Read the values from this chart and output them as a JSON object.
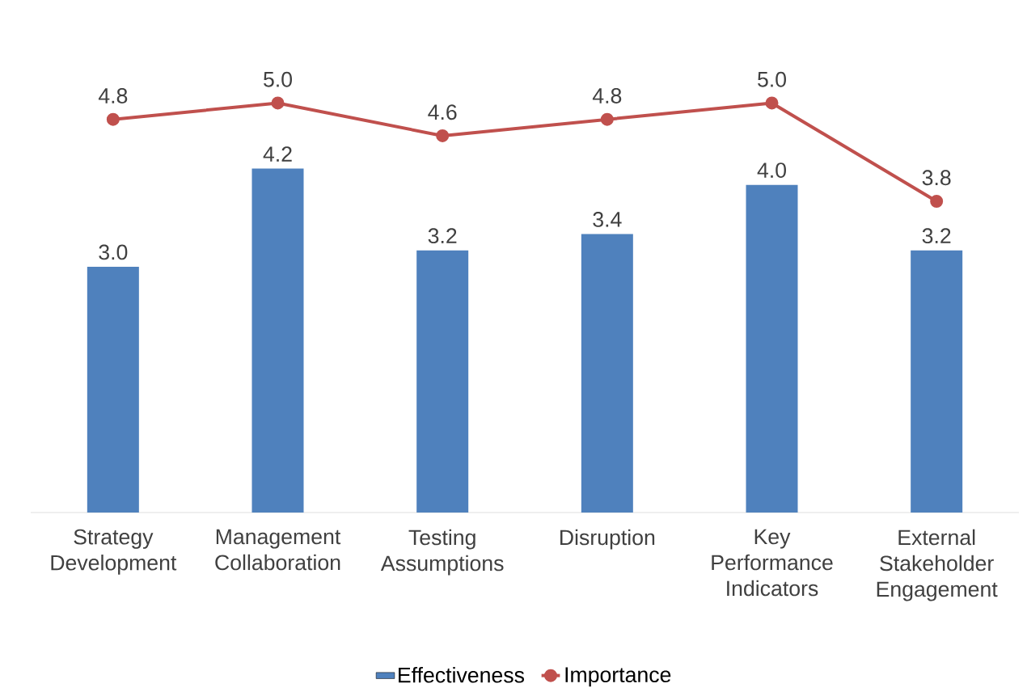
{
  "chart_data": {
    "type": "bar",
    "categories": [
      "Strategy Development",
      "Management Collaboration",
      "Testing Assumptions",
      "Disruption",
      "Key Performance Indicators",
      "External Stakeholder Engagement"
    ],
    "series": [
      {
        "name": "Effectiveness",
        "color": "#4f81bd",
        "values": [
          3.0,
          4.2,
          3.2,
          3.4,
          4.0,
          3.2
        ],
        "value_labels": [
          "3.0",
          "4.2",
          "3.2",
          "3.4",
          "4.0",
          "3.2"
        ]
      },
      {
        "name": "Importance",
        "type": "line",
        "color": "#c0504d",
        "marker": "circle",
        "values": [
          4.8,
          5.0,
          4.6,
          4.8,
          5.0,
          3.8
        ],
        "value_labels": [
          "4.8",
          "5.0",
          "4.6",
          "4.8",
          "5.0",
          "3.8"
        ]
      }
    ],
    "tick_labels": "x",
    "legend": "bottom",
    "grid": false
  }
}
